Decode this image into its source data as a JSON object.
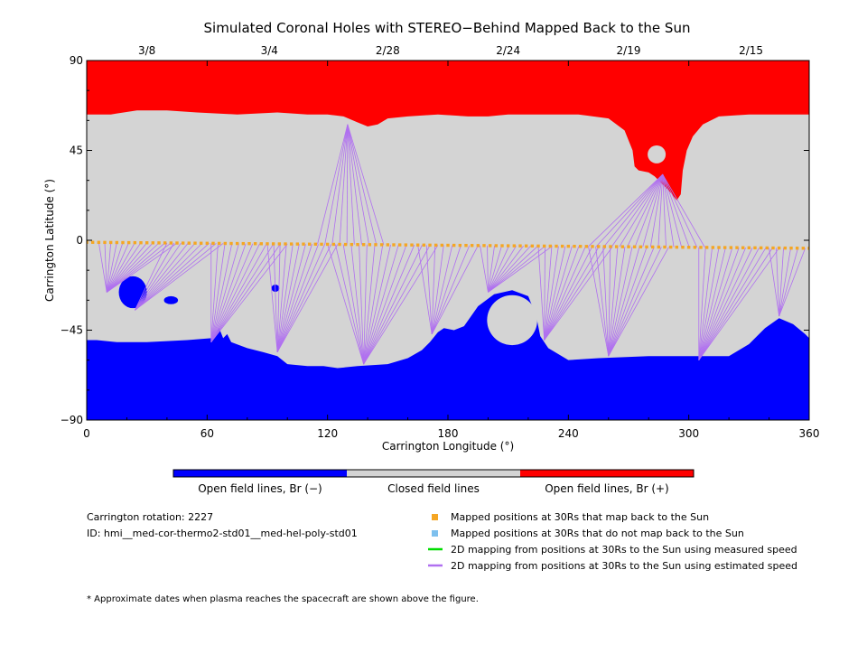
{
  "chart_data": {
    "type": "map",
    "title": "Simulated Coronal Holes with STEREO−Behind Mapped Back to the Sun",
    "xlabel": "Carrington Longitude (°)",
    "ylabel": "Carrington Latitude (°)",
    "xlim": [
      0,
      360
    ],
    "ylim": [
      -90,
      90
    ],
    "x_ticks": [
      "0",
      "60",
      "120",
      "180",
      "240",
      "300",
      "360"
    ],
    "y_ticks": [
      "90",
      "45",
      "0",
      "−45",
      "−90"
    ],
    "top_dates": [
      {
        "label": "3/8",
        "lon": 30
      },
      {
        "label": "3/4",
        "lon": 91
      },
      {
        "label": "2/28",
        "lon": 150
      },
      {
        "label": "2/24",
        "lon": 210
      },
      {
        "label": "2/19",
        "lon": 270
      },
      {
        "label": "2/15",
        "lon": 331
      }
    ],
    "north_hole_boundary": [
      [
        0,
        63
      ],
      [
        12,
        63
      ],
      [
        25,
        65
      ],
      [
        40,
        65
      ],
      [
        55,
        64
      ],
      [
        75,
        63
      ],
      [
        95,
        64
      ],
      [
        110,
        63
      ],
      [
        120,
        63
      ],
      [
        128,
        62
      ],
      [
        135,
        59
      ],
      [
        140,
        57
      ],
      [
        145,
        58
      ],
      [
        150,
        61
      ],
      [
        160,
        62
      ],
      [
        175,
        63
      ],
      [
        190,
        62
      ],
      [
        200,
        62
      ],
      [
        210,
        63
      ],
      [
        225,
        63
      ],
      [
        245,
        63
      ],
      [
        260,
        61
      ],
      [
        268,
        55
      ],
      [
        272,
        45
      ],
      [
        273,
        37
      ],
      [
        275,
        35
      ],
      [
        280,
        34
      ],
      [
        283,
        32
      ],
      [
        286,
        29
      ],
      [
        290,
        25
      ],
      [
        294,
        20
      ],
      [
        296,
        23
      ],
      [
        297,
        35
      ],
      [
        299,
        45
      ],
      [
        302,
        52
      ],
      [
        307,
        58
      ],
      [
        315,
        62
      ],
      [
        330,
        63
      ],
      [
        345,
        63
      ],
      [
        360,
        63
      ]
    ],
    "north_hole_island": {
      "lon": 284,
      "lat": 43,
      "radius": 4.5
    },
    "south_hole_boundary": [
      [
        0,
        -50
      ],
      [
        5,
        -50
      ],
      [
        15,
        -51
      ],
      [
        30,
        -51
      ],
      [
        50,
        -50
      ],
      [
        62,
        -49
      ],
      [
        64,
        -47
      ],
      [
        66,
        -44
      ],
      [
        68,
        -49
      ],
      [
        70,
        -47
      ],
      [
        72,
        -51
      ],
      [
        80,
        -54
      ],
      [
        88,
        -56
      ],
      [
        95,
        -58
      ],
      [
        100,
        -62
      ],
      [
        110,
        -63
      ],
      [
        118,
        -63
      ],
      [
        125,
        -64
      ],
      [
        135,
        -63
      ],
      [
        150,
        -62
      ],
      [
        160,
        -59
      ],
      [
        167,
        -55
      ],
      [
        171,
        -51
      ],
      [
        175,
        -46
      ],
      [
        178,
        -44
      ],
      [
        183,
        -45
      ],
      [
        188,
        -43
      ],
      [
        195,
        -33
      ],
      [
        203,
        -27
      ],
      [
        212,
        -25
      ],
      [
        220,
        -28
      ],
      [
        224,
        -38
      ],
      [
        226,
        -48
      ],
      [
        230,
        -54
      ],
      [
        240,
        -60
      ],
      [
        255,
        -59
      ],
      [
        280,
        -58
      ],
      [
        300,
        -58
      ],
      [
        320,
        -58
      ],
      [
        330,
        -52
      ],
      [
        338,
        -44
      ],
      [
        345,
        -39
      ],
      [
        352,
        -42
      ],
      [
        358,
        -47
      ],
      [
        360,
        -49
      ]
    ],
    "south_ring_hole": {
      "lon": 212,
      "lat": -40,
      "radius": 12.5
    },
    "south_patches": [
      {
        "lon": 23,
        "lat": -26,
        "rx": 7,
        "ry": 8
      },
      {
        "lon": 42,
        "lat": -30,
        "rx": 3.5,
        "ry": 2
      },
      {
        "lon": 94,
        "lat": -24,
        "rx": 2,
        "ry": 1.8
      }
    ],
    "mapped_points": {
      "series_name": "Mapped positions at 30Rs that map back to the Sun",
      "start": [
        0,
        -1
      ],
      "end": [
        360,
        -4
      ],
      "count": 121
    },
    "field_line_fans": [
      {
        "origin": [
          10,
          -26
        ],
        "lon_start": 6,
        "lon_end": 45,
        "n": 14
      },
      {
        "origin": [
          24,
          -35
        ],
        "lon_start": 40,
        "lon_end": 68,
        "n": 9
      },
      {
        "origin": [
          62,
          -51
        ],
        "lon_start": 62,
        "lon_end": 100,
        "n": 12
      },
      {
        "origin": [
          95,
          -56
        ],
        "lon_start": 90,
        "lon_end": 125,
        "n": 12
      },
      {
        "origin": [
          138,
          -62
        ],
        "lon_start": 120,
        "lon_end": 175,
        "n": 15
      },
      {
        "origin": [
          172,
          -47
        ],
        "lon_start": 165,
        "lon_end": 195,
        "n": 8
      },
      {
        "origin": [
          200,
          -26
        ],
        "lon_start": 196,
        "lon_end": 232,
        "n": 11
      },
      {
        "origin": [
          228,
          -50
        ],
        "lon_start": 225,
        "lon_end": 262,
        "n": 12
      },
      {
        "origin": [
          260,
          -58
        ],
        "lon_start": 250,
        "lon_end": 290,
        "n": 12
      },
      {
        "origin": [
          305,
          -60
        ],
        "lon_start": 305,
        "lon_end": 345,
        "n": 13
      },
      {
        "origin": [
          345,
          -38
        ],
        "lon_start": 340,
        "lon_end": 358,
        "n": 6
      },
      {
        "origin": [
          287,
          33
        ],
        "lon_start": 250,
        "lon_end": 308,
        "n": 16
      },
      {
        "origin": [
          130,
          58
        ],
        "lon_start": 115,
        "lon_end": 148,
        "n": 10
      }
    ],
    "colorbar": [
      {
        "label": "Open field lines, Br (−)",
        "color": "#0000ff"
      },
      {
        "label": "Closed field lines",
        "color": "#d4d4d4"
      },
      {
        "label": "Open field lines, Br (+)",
        "color": "#ff0000"
      }
    ],
    "legend": [
      {
        "label": "Mapped positions at 30Rs that map back to the Sun",
        "color": "#f5a623",
        "kind": "square"
      },
      {
        "label": "Mapped positions at 30Rs that do not map back to the Sun",
        "color": "#7ec0ee",
        "kind": "square"
      },
      {
        "label": "2D mapping from positions at 30Rs to the Sun using measured speed",
        "color": "#00dd00",
        "kind": "line"
      },
      {
        "label": "2D mapping from positions at 30Rs to the Sun using estimated speed",
        "color": "#b070f0",
        "kind": "line"
      }
    ]
  },
  "info": {
    "rotation": "Carrington rotation: 2227",
    "id": "ID: hmi__med-cor-thermo2-std01__med-hel-poly-std01"
  },
  "footnote": "* Approximate dates when plasma reaches the spacecraft are shown above the figure.",
  "colors": {
    "closed": "#d4d4d4",
    "open_positive": "#ff0000",
    "open_negative": "#0000ff",
    "field_line": "#b070f0",
    "mapped_point": "#f5a623"
  }
}
